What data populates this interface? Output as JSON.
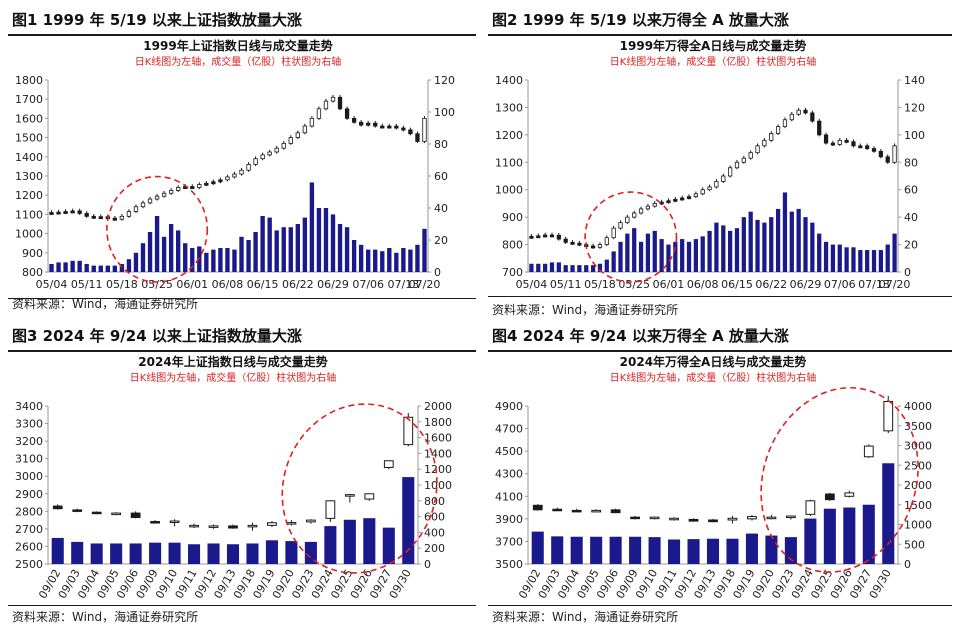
{
  "panels": [
    {
      "header": "图1  1999 年 5/19 以来上证指数放量大涨",
      "source": "资料来源：Wind，海通证券研究所"
    },
    {
      "header": "图2  1999 年 5/19 以来万得全 A 放量大涨",
      "source": "资料来源：Wind，海通证券研究所"
    },
    {
      "header": "图3  2024 年 9/24 以来上证指数放量大涨",
      "source": "资料来源：Wind，海通证券研究所"
    },
    {
      "header": "图4  2024 年 9/24 以来万得全 A 放量大涨",
      "source": "资料来源：Wind，海通证券研究所"
    }
  ],
  "colors": {
    "bar": "#1b1a8c",
    "candle": "#1a1a1a",
    "annotation": "#e02020",
    "axis": "#999999"
  },
  "chart_data": [
    {
      "type": "bar",
      "title": "1999年上证指数日线与成交量走势",
      "subtitle": "日K线图为左轴，成交量（亿股）柱状图为右轴",
      "ylim": [
        800,
        1800
      ],
      "yticks": [
        800,
        900,
        1000,
        1100,
        1200,
        1300,
        1400,
        1500,
        1600,
        1700,
        1800
      ],
      "y2lim": [
        0,
        120
      ],
      "y2ticks": [
        0,
        20,
        40,
        60,
        80,
        100,
        120
      ],
      "xtick_labels": [
        "05/04",
        "05/11",
        "05/18",
        "05/25",
        "06/01",
        "06/08",
        "06/15",
        "06/22",
        "06/29",
        "07/06",
        "07/13",
        "07/20"
      ],
      "xtick_every": 5,
      "highlight": [
        10,
        20
      ],
      "close": [
        1110,
        1112,
        1115,
        1118,
        1105,
        1090,
        1085,
        1088,
        1080,
        1075,
        1090,
        1115,
        1140,
        1160,
        1180,
        1195,
        1210,
        1225,
        1240,
        1245,
        1240,
        1255,
        1262,
        1270,
        1280,
        1295,
        1310,
        1330,
        1360,
        1390,
        1410,
        1425,
        1445,
        1470,
        1500,
        1525,
        1560,
        1600,
        1650,
        1690,
        1710,
        1650,
        1600,
        1580,
        1565,
        1575,
        1560,
        1555,
        1560,
        1550,
        1540,
        1520,
        1480,
        1600
      ],
      "volume": [
        5,
        6,
        6,
        7,
        7,
        5,
        4,
        4,
        4,
        4,
        5,
        8,
        12,
        18,
        25,
        35,
        22,
        30,
        26,
        18,
        15,
        16,
        12,
        14,
        15,
        15,
        14,
        22,
        20,
        25,
        35,
        34,
        26,
        28,
        28,
        30,
        34,
        56,
        40,
        40,
        36,
        30,
        28,
        20,
        17,
        14,
        14,
        13,
        15,
        12,
        15,
        14,
        17,
        27
      ]
    },
    {
      "type": "bar",
      "title": "1999年万得全A日线与成交量走势",
      "subtitle": "日K线图为左轴，成交量（亿股）柱状图为右轴",
      "ylim": [
        700,
        1400
      ],
      "yticks": [
        700,
        800,
        900,
        1000,
        1100,
        1200,
        1300,
        1400
      ],
      "y2lim": [
        0,
        140
      ],
      "y2ticks": [
        0,
        20,
        40,
        60,
        80,
        100,
        120,
        140
      ],
      "xtick_labels": [
        "05/04",
        "05/11",
        "05/18",
        "05/25",
        "06/01",
        "06/08",
        "06/15",
        "06/22",
        "06/29",
        "07/06",
        "07/13",
        "07/20"
      ],
      "xtick_every": 5,
      "highlight": [
        10,
        19
      ],
      "close": [
        830,
        832,
        835,
        834,
        820,
        808,
        805,
        800,
        795,
        790,
        800,
        825,
        860,
        880,
        900,
        915,
        930,
        940,
        950,
        955,
        960,
        965,
        970,
        975,
        985,
        1000,
        1010,
        1030,
        1050,
        1080,
        1100,
        1115,
        1135,
        1160,
        1180,
        1205,
        1230,
        1255,
        1275,
        1290,
        1280,
        1250,
        1200,
        1170,
        1165,
        1180,
        1175,
        1160,
        1160,
        1150,
        1140,
        1120,
        1100,
        1160
      ],
      "volume": [
        6,
        6,
        6,
        7,
        7,
        5,
        5,
        5,
        5,
        5,
        6,
        9,
        15,
        22,
        28,
        32,
        22,
        28,
        30,
        24,
        20,
        22,
        24,
        22,
        24,
        26,
        30,
        36,
        34,
        30,
        32,
        40,
        44,
        38,
        36,
        40,
        46,
        58,
        44,
        46,
        40,
        36,
        28,
        22,
        20,
        20,
        18,
        18,
        16,
        16,
        16,
        16,
        20,
        28
      ]
    },
    {
      "type": "bar",
      "title": "2024年上证指数日线与成交量走势",
      "subtitle": "日K线图为左轴，成交量（亿股）柱状图为右轴",
      "ylim": [
        2500,
        3400
      ],
      "yticks": [
        2500,
        2600,
        2700,
        2800,
        2900,
        3000,
        3100,
        3200,
        3300,
        3400
      ],
      "y2lim": [
        0,
        2000
      ],
      "y2ticks": [
        0,
        200,
        400,
        600,
        800,
        1000,
        1200,
        1400,
        1600,
        1800,
        2000
      ],
      "xtick_labels": [
        "09/02",
        "09/03",
        "09/04",
        "09/05",
        "09/06",
        "09/09",
        "09/10",
        "09/11",
        "09/12",
        "09/13",
        "09/18",
        "09/19",
        "09/20",
        "09/23",
        "09/24",
        "09/25",
        "09/26",
        "09/27",
        "09/30"
      ],
      "xtick_every": 1,
      "highlight": [
        13,
        18
      ],
      "open": [
        2830,
        2808,
        2795,
        2786,
        2790,
        2742,
        2740,
        2720,
        2717,
        2717,
        2715,
        2720,
        2735,
        2740,
        2760,
        2890,
        2870,
        3050,
        3180
      ],
      "high": [
        2840,
        2815,
        2800,
        2795,
        2800,
        2750,
        2755,
        2730,
        2725,
        2725,
        2735,
        2745,
        2750,
        2755,
        2862,
        2900,
        2900,
        3090,
        3360
      ],
      "low": [
        2810,
        2795,
        2785,
        2778,
        2760,
        2730,
        2715,
        2705,
        2700,
        2700,
        2690,
        2710,
        2720,
        2730,
        2740,
        2850,
        2860,
        3040,
        3170
      ],
      "close": [
        2815,
        2805,
        2788,
        2790,
        2765,
        2735,
        2745,
        2720,
        2717,
        2705,
        2720,
        2735,
        2736,
        2750,
        2860,
        2895,
        2900,
        3088,
        3336
      ],
      "volume": [
        330,
        280,
        260,
        260,
        260,
        270,
        270,
        250,
        260,
        250,
        260,
        300,
        290,
        280,
        480,
        560,
        580,
        460,
        1100
      ]
    },
    {
      "type": "bar",
      "title": "2024年万得全A日线与成交量走势",
      "subtitle": "日K线图为左轴，成交量（亿股）柱状图为右轴",
      "ylim": [
        3500,
        4900
      ],
      "yticks": [
        3500,
        3700,
        3900,
        4100,
        4300,
        4500,
        4700,
        4900
      ],
      "y2lim": [
        0,
        4000
      ],
      "y2ticks": [
        0,
        500,
        1000,
        1500,
        2000,
        2500,
        3000,
        3500,
        4000
      ],
      "xtick_labels": [
        "09/02",
        "09/03",
        "09/04",
        "09/05",
        "09/06",
        "09/09",
        "09/10",
        "09/11",
        "09/12",
        "09/13",
        "09/18",
        "09/19",
        "09/20",
        "09/23",
        "09/24",
        "09/25",
        "09/26",
        "09/27",
        "09/30"
      ],
      "xtick_every": 1,
      "highlight": [
        13,
        18
      ],
      "open": [
        4020,
        3985,
        3975,
        3968,
        3980,
        3915,
        3910,
        3905,
        3895,
        3890,
        3890,
        3900,
        3910,
        3912,
        3940,
        4120,
        4100,
        4450,
        4680
      ],
      "high": [
        4030,
        4000,
        3990,
        3985,
        3990,
        3925,
        3920,
        3915,
        3905,
        3900,
        3925,
        3935,
        3935,
        3930,
        4070,
        4130,
        4150,
        4560,
        4990
      ],
      "low": [
        3975,
        3970,
        3960,
        3958,
        3950,
        3895,
        3895,
        3885,
        3875,
        3870,
        3860,
        3885,
        3895,
        3895,
        3925,
        4060,
        4090,
        4440,
        4660
      ],
      "close": [
        3980,
        3975,
        3968,
        3975,
        3955,
        3905,
        3915,
        3905,
        3880,
        3875,
        3905,
        3920,
        3915,
        3925,
        4060,
        4070,
        4130,
        4545,
        4940
      ],
      "volume": [
        820,
        700,
        690,
        690,
        690,
        690,
        680,
        620,
        630,
        640,
        640,
        770,
        720,
        680,
        1150,
        1400,
        1430,
        1500,
        2550
      ]
    }
  ]
}
